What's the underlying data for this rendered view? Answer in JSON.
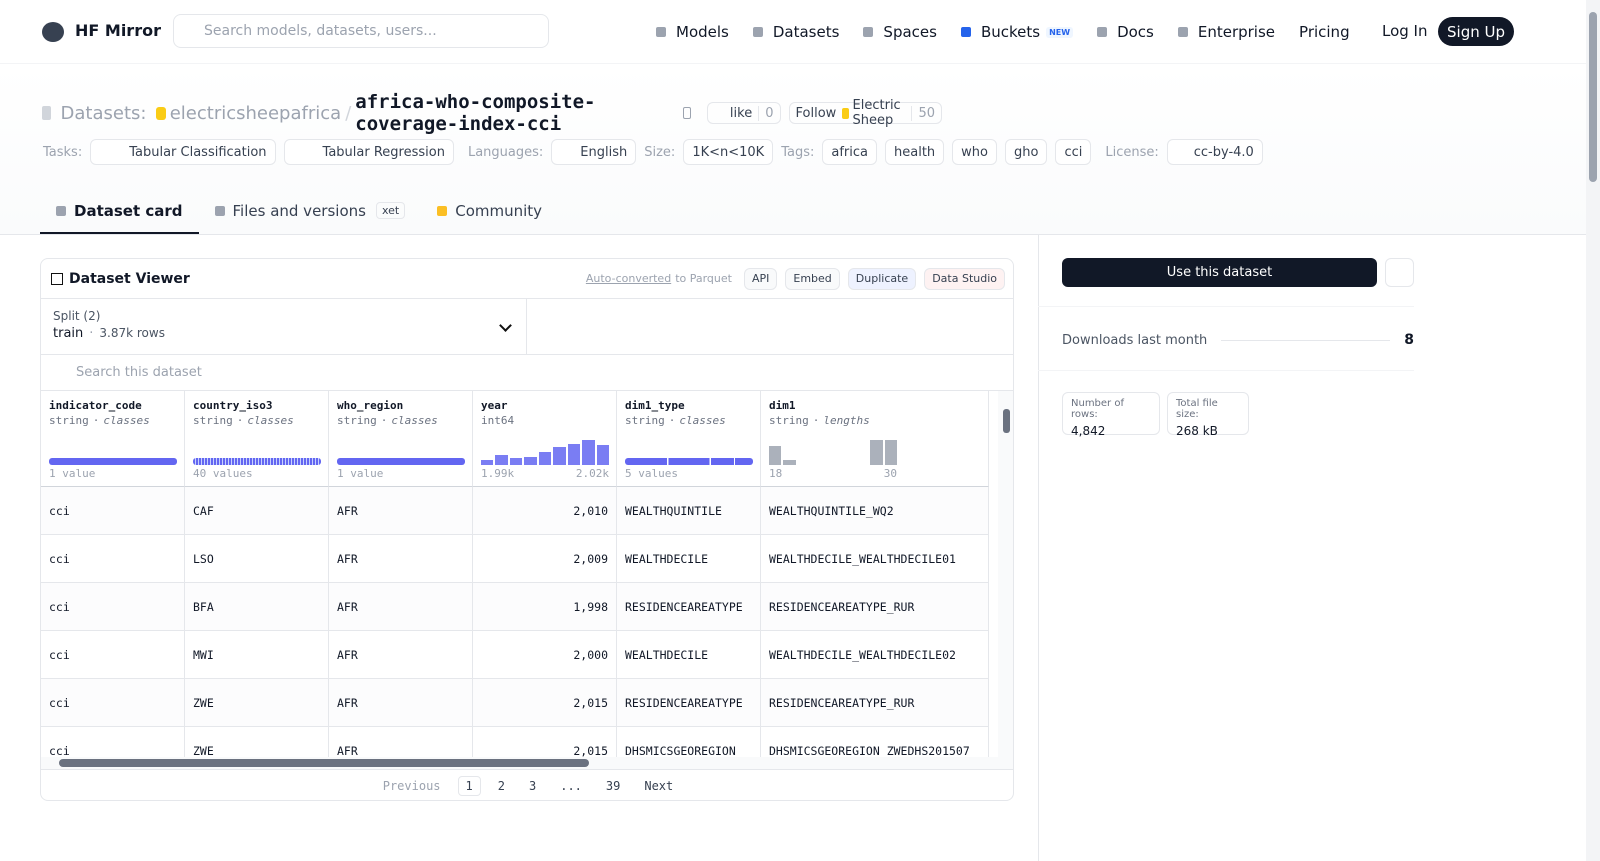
{
  "nav": {
    "brand": "HF Mirror",
    "search_placeholder": "Search models, datasets, users...",
    "links": [
      "Models",
      "Datasets",
      "Spaces",
      "Buckets",
      "Docs",
      "Enterprise",
      "Pricing"
    ],
    "new_badge": "NEW",
    "login": "Log In",
    "signup": "Sign Up"
  },
  "header": {
    "prefix": "Datasets:",
    "owner": "electricsheepafrica",
    "separator": "/",
    "name": "africa-who-composite-coverage-index-cci",
    "like": "like",
    "likes": 0,
    "follow": "Follow",
    "follow_org": "Electric Sheep",
    "followers": 50
  },
  "tags": {
    "tasks_label": "Tasks:",
    "tasks": [
      "Tabular Classification",
      "Tabular Regression"
    ],
    "languages_label": "Languages:",
    "languages": [
      "English"
    ],
    "size_label": "Size:",
    "size": "1K<n<10K",
    "tags_label": "Tags:",
    "tags": [
      "africa",
      "health",
      "who",
      "gho",
      "cci"
    ],
    "license_label": "License:",
    "license": "cc-by-4.0"
  },
  "tabs": [
    "Dataset card",
    "Files and versions",
    "Community"
  ],
  "xet": "xet",
  "viewer": {
    "title": "Dataset Viewer",
    "auto": "Auto-converted",
    "auto_rest": "to Parquet",
    "buttons": [
      "API",
      "Embed",
      "Duplicate",
      "Data Studio"
    ],
    "split_label": "Split (2)",
    "split": "train",
    "split_sep": "·",
    "rows_count": "3.87k rows",
    "search": "Search this dataset",
    "columns": [
      {
        "name": "indicator_code",
        "type": "string",
        "kind": "classes",
        "summary": "1 value"
      },
      {
        "name": "country_iso3",
        "type": "string",
        "kind": "classes",
        "summary": "40 values"
      },
      {
        "name": "who_region",
        "type": "string",
        "kind": "classes",
        "summary": "1 value"
      },
      {
        "name": "year",
        "type": "int64",
        "histogram": [
          5,
          10,
          7,
          8,
          13,
          18,
          21,
          25,
          20
        ],
        "min": "1.99k",
        "max": "2.02k"
      },
      {
        "name": "dim1_type",
        "type": "string",
        "kind": "classes",
        "summary": "5 values"
      },
      {
        "name": "dim1",
        "type": "string",
        "kind": "lengths",
        "histogram": [
          18,
          5,
          0,
          0,
          0,
          0,
          0,
          24,
          24
        ],
        "min": "18",
        "max": "30"
      }
    ],
    "rows": [
      [
        "cci",
        "CAF",
        "AFR",
        "2,010",
        "WEALTHQUINTILE",
        "WEALTHQUINTILE_WQ2"
      ],
      [
        "cci",
        "LSO",
        "AFR",
        "2,009",
        "WEALTHDECILE",
        "WEALTHDECILE_WEALTHDECILE01"
      ],
      [
        "cci",
        "BFA",
        "AFR",
        "1,998",
        "RESIDENCEAREATYPE",
        "RESIDENCEAREATYPE_RUR"
      ],
      [
        "cci",
        "MWI",
        "AFR",
        "2,000",
        "WEALTHDECILE",
        "WEALTHDECILE_WEALTHDECILE02"
      ],
      [
        "cci",
        "ZWE",
        "AFR",
        "2,015",
        "RESIDENCEAREATYPE",
        "RESIDENCEAREATYPE_RUR"
      ],
      [
        "cci",
        "ZWE",
        "AFR",
        "2,015",
        "DHSMICSGEOREGION",
        "DHSMICSGEOREGION_ZWEDHS201507"
      ]
    ],
    "pagination": [
      "Previous",
      "1",
      "2",
      "3",
      "...",
      "39",
      "Next"
    ]
  },
  "sidebar": {
    "use": "Use this dataset",
    "downloads_label": "Downloads last month",
    "downloads": 8,
    "rows_label": "Number of rows:",
    "rows": "4,842",
    "size_label": "Total file size:",
    "size": "268 kB"
  }
}
